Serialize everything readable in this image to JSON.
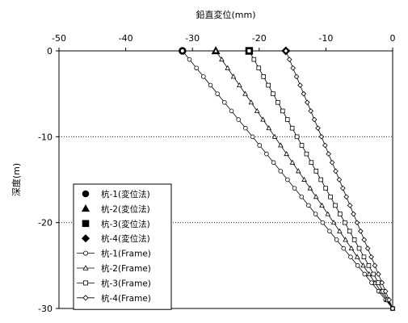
{
  "chart_data": {
    "type": "line",
    "xlabel": "鉛直変位(mm)",
    "ylabel": "深度(m)",
    "xlim": [
      -50,
      0
    ],
    "ylim": [
      -30,
      0
    ],
    "x_ticks": [
      -50,
      -40,
      -30,
      -20,
      -10,
      0
    ],
    "y_ticks": [
      0,
      -10,
      -20,
      -30
    ],
    "x_tick_labels": [
      "-50",
      "-40",
      "-30",
      "-20",
      "-10",
      "0"
    ],
    "y_tick_labels": [
      "0",
      "-10",
      "-20",
      "-30"
    ],
    "grid": "horizontal dotted",
    "legend_position": "bottom-left",
    "series": [
      {
        "name": "杭-1(変位法)",
        "marker": "circle",
        "line": false,
        "points": [
          {
            "x": -31.5,
            "y": 0
          }
        ]
      },
      {
        "name": "杭-2(変位法)",
        "marker": "triangle",
        "line": false,
        "points": [
          {
            "x": -26.5,
            "y": 0
          }
        ]
      },
      {
        "name": "杭-3(変位法)",
        "marker": "square",
        "line": false,
        "points": [
          {
            "x": -21.5,
            "y": 0
          }
        ]
      },
      {
        "name": "杭-4(変位法)",
        "marker": "diamond",
        "line": false,
        "points": [
          {
            "x": -16,
            "y": 0
          }
        ]
      },
      {
        "name": "杭-1(Frame)",
        "marker": "circle-open",
        "line": true,
        "points": [
          {
            "x": -31.5,
            "y": 0
          },
          {
            "x": 0,
            "y": -30
          }
        ]
      },
      {
        "name": "杭-2(Frame)",
        "marker": "triangle-open",
        "line": true,
        "points": [
          {
            "x": -26.5,
            "y": 0
          },
          {
            "x": 0,
            "y": -30
          }
        ]
      },
      {
        "name": "杭-3(Frame)",
        "marker": "square-open",
        "line": true,
        "points": [
          {
            "x": -21.5,
            "y": 0
          },
          {
            "x": 0,
            "y": -30
          }
        ]
      },
      {
        "name": "杭-4(Frame)",
        "marker": "diamond-open",
        "line": true,
        "points": [
          {
            "x": -16,
            "y": 0
          },
          {
            "x": 0,
            "y": -30
          }
        ]
      }
    ]
  }
}
